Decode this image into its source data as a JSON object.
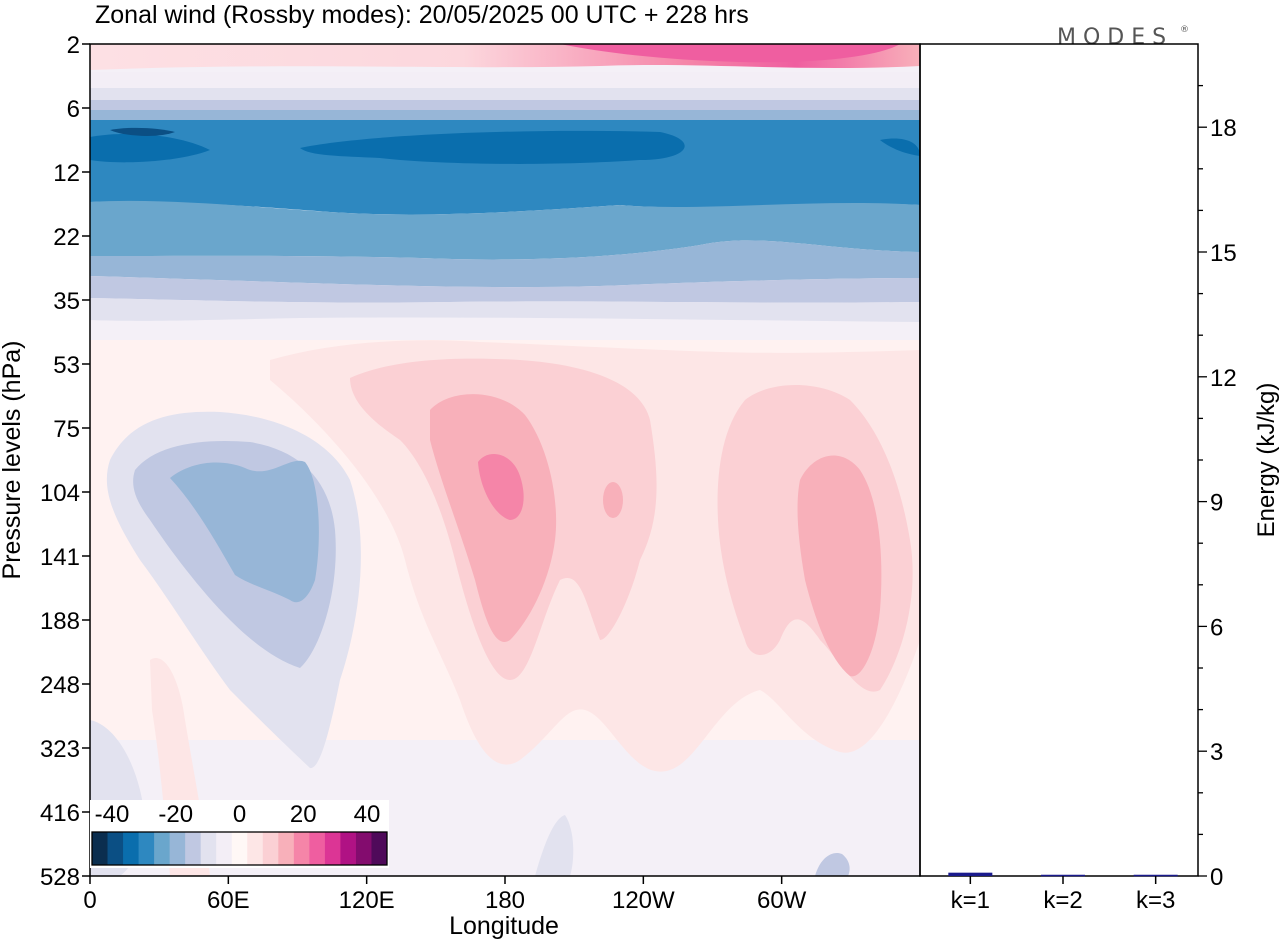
{
  "chart_data": {
    "type": "heatmap",
    "title": "Zonal wind (Rossby modes):  20/05/2025  00 UTC  + 228 hrs",
    "brand": "MODES",
    "brand_mark": "®",
    "xlabel": "Longitude",
    "ylabel": "Pressure levels (hPa)",
    "y2label": "Energy (kJ/kg)",
    "x_ticks": [
      "0",
      "60E",
      "120E",
      "180",
      "120W",
      "60W"
    ],
    "x_tick_degrees": [
      0,
      60,
      120,
      180,
      240,
      300
    ],
    "xlim": [
      0,
      360
    ],
    "pressure_levels": [
      "2",
      "6",
      "12",
      "22",
      "35",
      "53",
      "75",
      "104",
      "141",
      "188",
      "248",
      "323",
      "416",
      "528"
    ],
    "energy_ticks": [
      "0",
      "3",
      "6",
      "9",
      "12",
      "15",
      "18"
    ],
    "energy_ylim": [
      0,
      20
    ],
    "energy_categories": [
      "k=1",
      "k=2",
      "k=3"
    ],
    "energy_values": [
      0.08,
      0.03,
      0.03
    ],
    "energy_bar_color": "#1a1a8c",
    "colorbar": {
      "labels": [
        "-40",
        "-20",
        "0",
        "20",
        "40"
      ],
      "colors": [
        "#0b2e4f",
        "#0b4f84",
        "#0a6ead",
        "#2e88c0",
        "#6aa6cc",
        "#97b6d7",
        "#c0c8e2",
        "#e2e2ef",
        "#f3eef6",
        "#fff8f6",
        "#fde6e6",
        "#fbd0d4",
        "#f8b0ba",
        "#f585a8",
        "#ef5ea0",
        "#dc3595",
        "#b01284",
        "#830c6e",
        "#4f0a5a"
      ]
    },
    "wind_field_ms": {
      "description_levels": [
        "2",
        "6",
        "12",
        "22",
        "35",
        "53",
        "75",
        "104",
        "141",
        "188",
        "248",
        "323",
        "416",
        "528"
      ],
      "bands": [
        {
          "level": "2",
          "value": 12
        },
        {
          "level": "6",
          "value": -6
        },
        {
          "level": "12",
          "value": -32
        },
        {
          "level": "22",
          "value": -20
        },
        {
          "level": "35",
          "value": -8
        },
        {
          "level": "53",
          "value": 2
        }
      ],
      "anomalies": [
        {
          "lon": 40,
          "level": "104",
          "value": -18
        },
        {
          "lon": 180,
          "level": "104",
          "value": 14
        },
        {
          "lon": 225,
          "level": "104",
          "value": 10
        },
        {
          "lon": 305,
          "level": "141",
          "value": 11
        }
      ]
    }
  }
}
